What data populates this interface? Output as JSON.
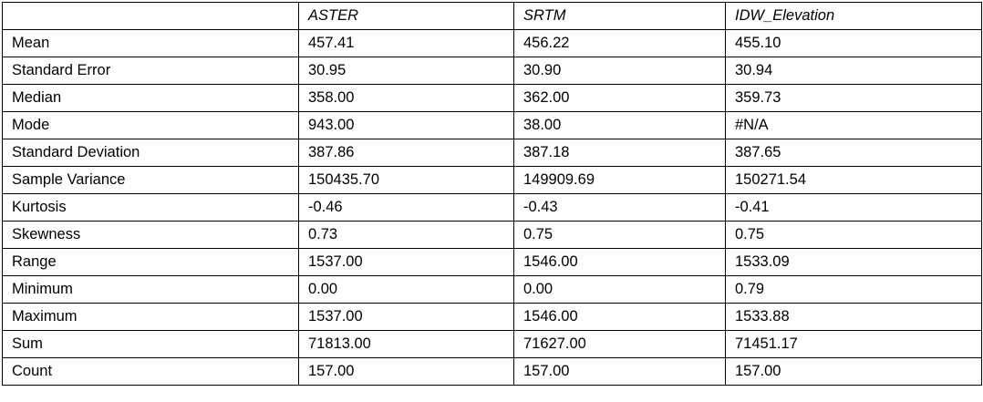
{
  "table": {
    "columns": [
      "",
      "ASTER",
      "SRTM",
      "IDW_Elevation"
    ],
    "rows": [
      {
        "label": "Mean",
        "aster": "457.41",
        "srtm": "456.22",
        "idw": "455.10"
      },
      {
        "label": "Standard Error",
        "aster": "30.95",
        "srtm": "30.90",
        "idw": "30.94"
      },
      {
        "label": "Median",
        "aster": "358.00",
        "srtm": "362.00",
        "idw": "359.73"
      },
      {
        "label": "Mode",
        "aster": "943.00",
        "srtm": "38.00",
        "idw": "#N/A"
      },
      {
        "label": "Standard Deviation",
        "aster": "387.86",
        "srtm": "387.18",
        "idw": "387.65"
      },
      {
        "label": "Sample Variance",
        "aster": "150435.70",
        "srtm": "149909.69",
        "idw": "150271.54"
      },
      {
        "label": "Kurtosis",
        "aster": "-0.46",
        "srtm": "-0.43",
        "idw": "-0.41"
      },
      {
        "label": "Skewness",
        "aster": "0.73",
        "srtm": "0.75",
        "idw": "0.75"
      },
      {
        "label": "Range",
        "aster": "1537.00",
        "srtm": "1546.00",
        "idw": "1533.09"
      },
      {
        "label": "Minimum",
        "aster": "0.00",
        "srtm": "0.00",
        "idw": "0.79"
      },
      {
        "label": "Maximum",
        "aster": "1537.00",
        "srtm": "1546.00",
        "idw": "1533.88"
      },
      {
        "label": "Sum",
        "aster": "71813.00",
        "srtm": "71627.00",
        "idw": "71451.17"
      },
      {
        "label": "Count",
        "aster": "157.00",
        "srtm": "157.00",
        "idw": "157.00"
      }
    ]
  }
}
